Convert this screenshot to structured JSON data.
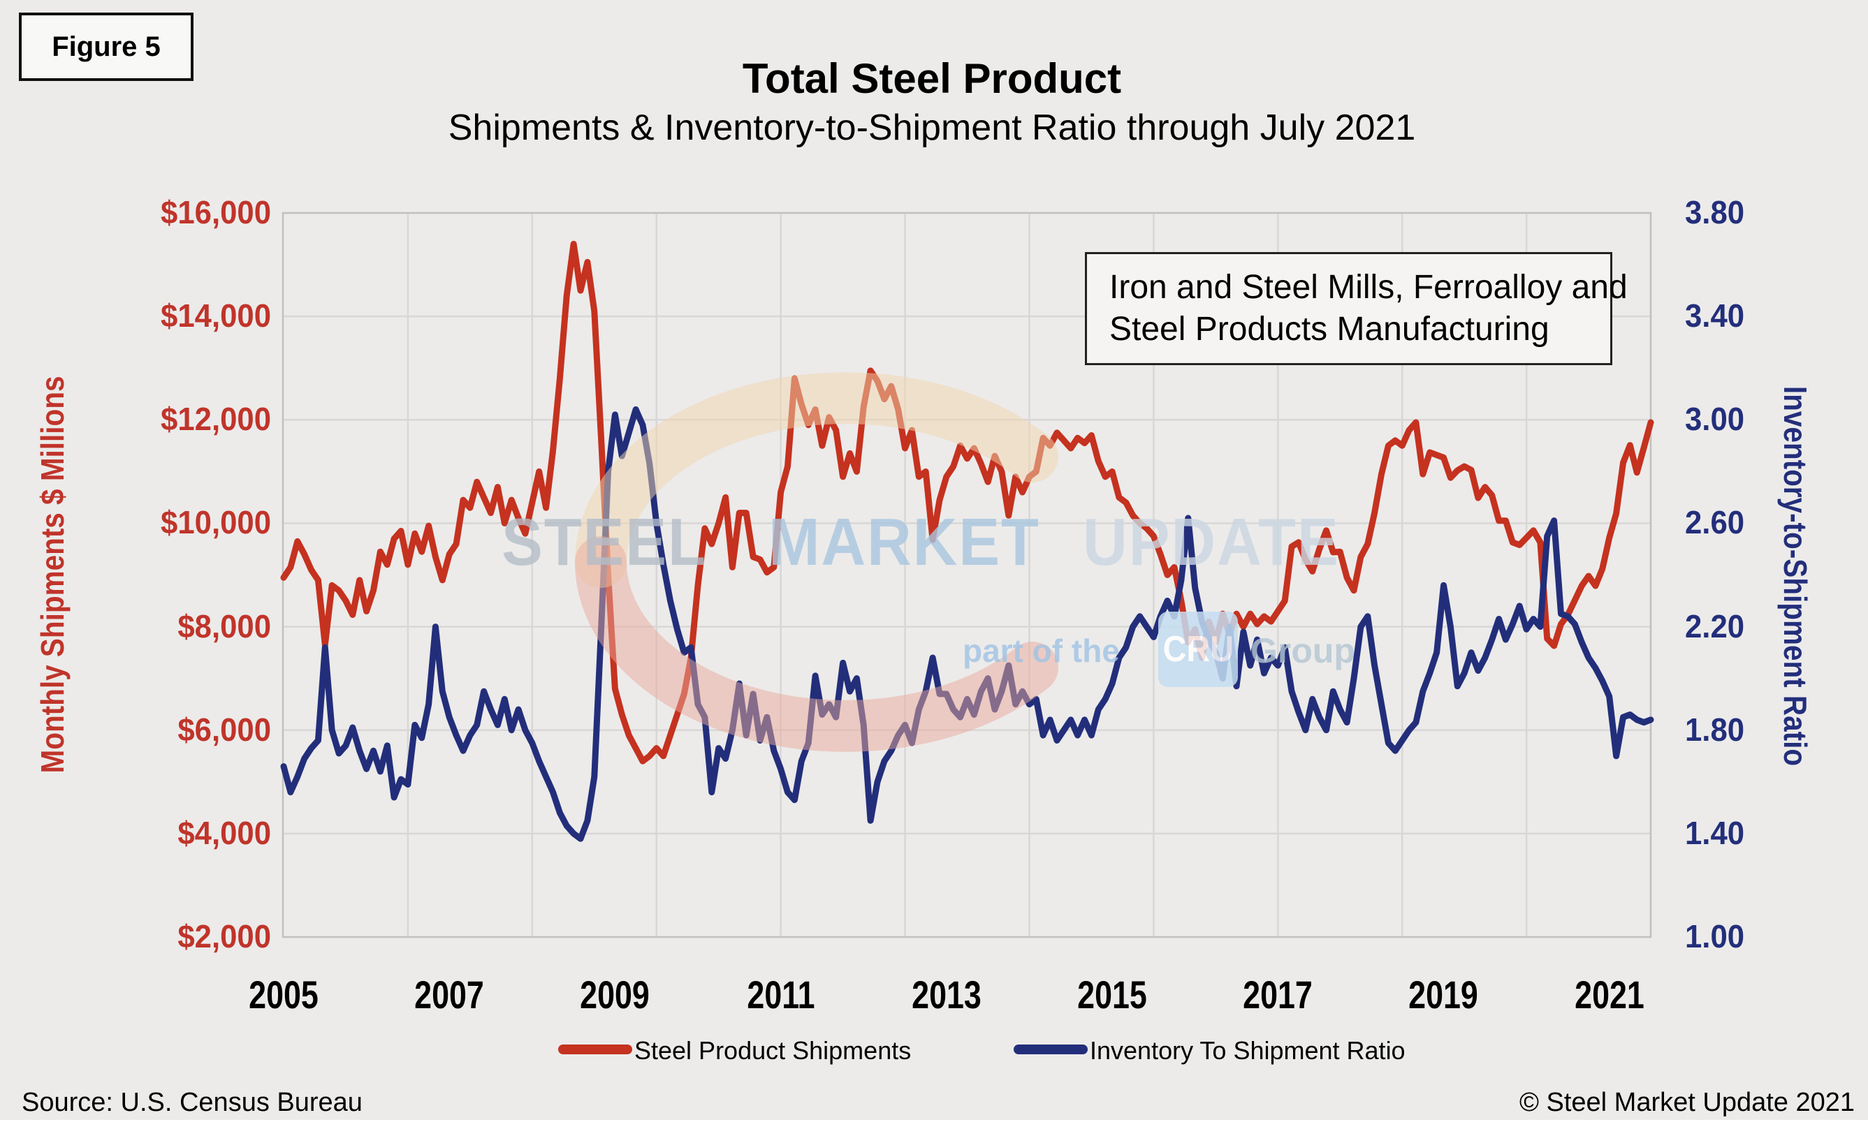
{
  "figure_label": "Figure 5",
  "title": "Total Steel Product",
  "subtitle": "Shipments & Inventory-to-Shipment Ratio through July 2021",
  "annotation": {
    "line1": "Iron and Steel Mills, Ferroalloy and",
    "line2": "Steel Products Manufacturing"
  },
  "source": "Source: U.S. Census Bureau",
  "copyright": "© Steel Market Update 2021",
  "watermark": {
    "word1": "STEEL",
    "word2": "MARKET",
    "word3": "UPDATE",
    "tagline_prefix": "part of the",
    "tagline_box": "CRU",
    "tagline_suffix": "Group",
    "word1_color": "#b4bdc8",
    "word2_color": "#a9c6e0",
    "word3_color": "#cbd7e2",
    "tagline_color": "#9fc3e4",
    "group_color": "#b3c6d3",
    "swirl_top_color": "#f2d5ae",
    "swirl_bottom_color": "#eaa99c"
  },
  "chart_data": {
    "type": "line",
    "title": "Total Steel Product",
    "subtitle": "Shipments & Inventory-to-Shipment Ratio through July 2021",
    "x_start_year": 2005,
    "x_start_month": 1,
    "n_months": 199,
    "x_label_interval_months": 24,
    "x_gridline_interval_months": 18,
    "x_tick_labels": [
      "2005",
      "2007",
      "2009",
      "2011",
      "2013",
      "2015",
      "2017",
      "2019",
      "2021"
    ],
    "left_axis": {
      "label": "Monthly Shipments $ Millions",
      "color": "#C0342A",
      "min": 2000,
      "max": 16000,
      "tick_values": [
        16000,
        14000,
        12000,
        10000,
        8000,
        6000,
        4000,
        2000
      ],
      "tick_labels": [
        "$16,000",
        "$14,000",
        "$12,000",
        "$10,000",
        "$8,000",
        "$6,000",
        "$4,000",
        "$2,000"
      ]
    },
    "right_axis": {
      "label": "Inventory-to-Shipment Ratio",
      "color": "#232E7B",
      "min": 1.0,
      "max": 3.8,
      "tick_values": [
        3.8,
        3.4,
        3.0,
        2.6,
        2.2,
        1.8,
        1.4,
        1.0
      ],
      "tick_labels": [
        "3.80",
        "3.40",
        "3.00",
        "2.60",
        "2.20",
        "1.80",
        "1.40",
        "1.00"
      ]
    },
    "grid_on": true,
    "legend_position": "bottom",
    "series": [
      {
        "name": "Steel Product Shipments",
        "axis": "left",
        "color": "#C5321F",
        "values": [
          8950,
          9150,
          9650,
          9400,
          9100,
          8900,
          7650,
          8800,
          8700,
          8500,
          8230,
          8900,
          8300,
          8700,
          9450,
          9200,
          9700,
          9850,
          9200,
          9800,
          9450,
          9950,
          9350,
          8900,
          9400,
          9600,
          10450,
          10300,
          10800,
          10500,
          10200,
          10700,
          10000,
          10450,
          10100,
          9800,
          10400,
          11000,
          10300,
          11400,
          12800,
          14400,
          15400,
          14500,
          15050,
          14100,
          11600,
          9000,
          6800,
          6300,
          5900,
          5650,
          5400,
          5500,
          5650,
          5500,
          5900,
          6300,
          6700,
          7400,
          8800,
          9900,
          9600,
          10000,
          10500,
          9150,
          10200,
          10200,
          9350,
          9300,
          9050,
          9150,
          10600,
          11100,
          12800,
          12300,
          11900,
          12200,
          11500,
          12050,
          11800,
          10900,
          11350,
          11000,
          12250,
          12950,
          12750,
          12400,
          12650,
          12200,
          11450,
          11800,
          10900,
          11000,
          9680,
          10450,
          10900,
          11100,
          11500,
          11250,
          11450,
          11150,
          10800,
          11300,
          11000,
          10150,
          10900,
          10600,
          10900,
          11000,
          11650,
          11500,
          11750,
          11600,
          11450,
          11650,
          11550,
          11700,
          11200,
          10900,
          11000,
          10500,
          10400,
          10150,
          10000,
          9900,
          9750,
          9400,
          9000,
          9150,
          8500,
          7700,
          7950,
          7400,
          8100,
          7700,
          8250,
          7850,
          8250,
          8000,
          8250,
          8050,
          8200,
          8100,
          8300,
          8500,
          9550,
          9630,
          9300,
          9070,
          9500,
          9860,
          9440,
          9450,
          8950,
          8700,
          9350,
          9600,
          10200,
          10950,
          11500,
          11600,
          11500,
          11800,
          11950,
          10950,
          11370,
          11320,
          11270,
          10880,
          11020,
          11100,
          11030,
          10490,
          10700,
          10540,
          10050,
          10050,
          9630,
          9580,
          9720,
          9860,
          9630,
          7770,
          7630,
          8050,
          8230,
          8510,
          8790,
          8980,
          8790,
          9120,
          9720,
          10190,
          11170,
          11510,
          10980,
          11460,
          11950
        ]
      },
      {
        "name": "Inventory To Shipment Ratio",
        "axis": "right",
        "color": "#232E7B",
        "values": [
          1.66,
          1.56,
          1.62,
          1.69,
          1.73,
          1.76,
          2.12,
          1.8,
          1.71,
          1.74,
          1.81,
          1.72,
          1.65,
          1.72,
          1.64,
          1.74,
          1.54,
          1.61,
          1.59,
          1.82,
          1.77,
          1.9,
          2.2,
          1.95,
          1.85,
          1.78,
          1.72,
          1.78,
          1.82,
          1.95,
          1.88,
          1.82,
          1.92,
          1.8,
          1.88,
          1.8,
          1.75,
          1.68,
          1.62,
          1.56,
          1.48,
          1.43,
          1.4,
          1.38,
          1.45,
          1.62,
          2.2,
          2.8,
          3.02,
          2.86,
          2.95,
          3.04,
          2.98,
          2.83,
          2.6,
          2.44,
          2.3,
          2.19,
          2.1,
          2.12,
          1.9,
          1.85,
          1.56,
          1.73,
          1.69,
          1.8,
          1.98,
          1.78,
          1.94,
          1.76,
          1.85,
          1.72,
          1.65,
          1.56,
          1.53,
          1.68,
          1.75,
          2.01,
          1.86,
          1.9,
          1.85,
          2.06,
          1.95,
          2.0,
          1.82,
          1.45,
          1.6,
          1.68,
          1.72,
          1.78,
          1.82,
          1.75,
          1.88,
          1.95,
          2.08,
          1.94,
          1.94,
          1.88,
          1.85,
          1.92,
          1.86,
          1.95,
          2.0,
          1.88,
          1.95,
          2.05,
          1.9,
          1.95,
          1.9,
          1.92,
          1.78,
          1.84,
          1.76,
          1.8,
          1.84,
          1.78,
          1.84,
          1.78,
          1.88,
          1.92,
          1.98,
          2.08,
          2.12,
          2.2,
          2.24,
          2.2,
          2.16,
          2.24,
          2.3,
          2.24,
          2.38,
          2.62,
          2.35,
          2.22,
          2.15,
          2.1,
          2.0,
          2.2,
          1.97,
          2.18,
          2.05,
          2.15,
          2.02,
          2.08,
          2.05,
          2.12,
          1.95,
          1.87,
          1.8,
          1.92,
          1.85,
          1.8,
          1.95,
          1.88,
          1.83,
          2.0,
          2.2,
          2.24,
          2.05,
          1.9,
          1.75,
          1.72,
          1.76,
          1.8,
          1.83,
          1.95,
          2.02,
          2.1,
          2.36,
          2.2,
          1.97,
          2.02,
          2.1,
          2.03,
          2.08,
          2.15,
          2.23,
          2.15,
          2.21,
          2.28,
          2.19,
          2.23,
          2.2,
          2.55,
          2.61,
          2.25,
          2.24,
          2.21,
          2.14,
          2.08,
          2.04,
          1.99,
          1.93,
          1.7,
          1.85,
          1.86,
          1.84,
          1.83,
          1.84
        ]
      }
    ]
  }
}
